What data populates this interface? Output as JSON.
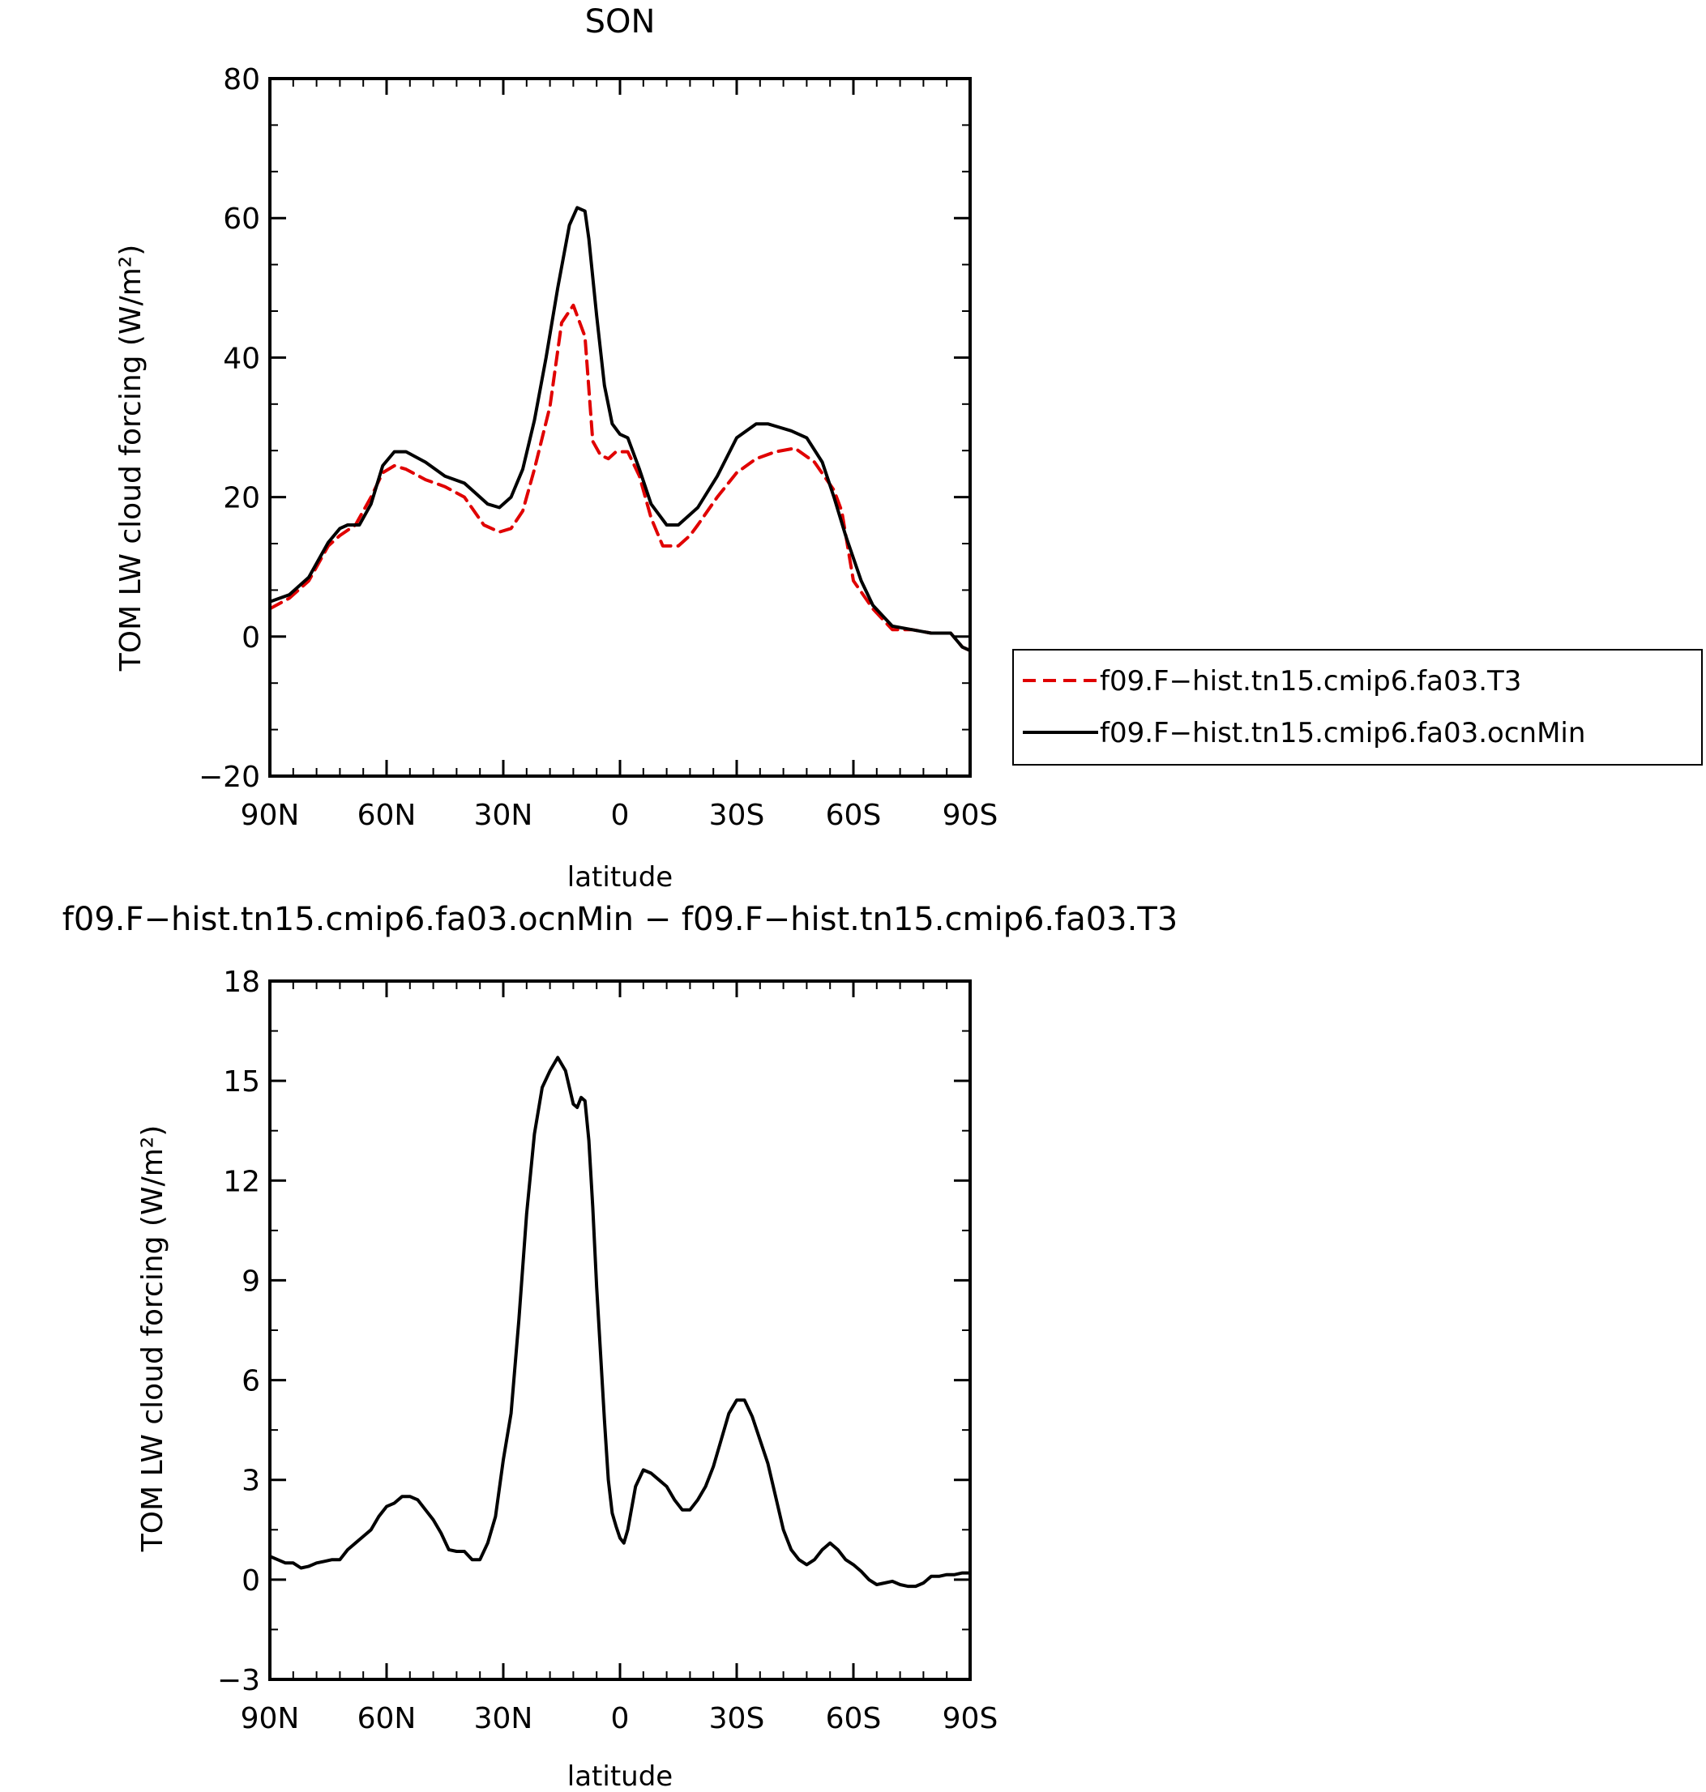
{
  "chart_data": [
    {
      "type": "line",
      "title": "SON",
      "xlabel": "latitude",
      "ylabel": "TOM LW cloud forcing (W/m²)",
      "xlim": [
        90,
        -90
      ],
      "ylim": [
        -20,
        80
      ],
      "xticks": [
        90,
        60,
        30,
        0,
        -30,
        -60,
        -90
      ],
      "xtick_labels": [
        "90N",
        "60N",
        "30N",
        "0",
        "30S",
        "60S",
        "90S"
      ],
      "yticks": [
        -20,
        0,
        20,
        40,
        60,
        80
      ],
      "ytick_labels": [
        "−20",
        "0",
        "20",
        "40",
        "60",
        "80"
      ],
      "legend_position": "right",
      "grid": false,
      "series": [
        {
          "name": "f09.F−hist.tn15.cmip6.fa03.T3",
          "color": "#e00000",
          "dash": "dashed",
          "x": [
            90,
            85,
            80,
            75,
            72,
            68,
            64,
            61,
            58,
            55,
            50,
            45,
            40,
            35,
            31,
            28,
            25,
            22,
            18,
            15,
            12,
            9,
            7,
            5,
            3,
            1,
            -2,
            -5,
            -8,
            -11,
            -15,
            -18,
            -20,
            -25,
            -30,
            -35,
            -40,
            -45,
            -50,
            -55,
            -57,
            -60,
            -65,
            -70,
            -75,
            -80,
            -85,
            -88,
            -90
          ],
          "y": [
            4,
            5.5,
            8,
            13,
            14.5,
            16,
            20,
            23.5,
            24.5,
            24,
            22.5,
            21.5,
            20,
            16,
            15,
            15.5,
            18,
            24,
            33,
            45,
            47.5,
            43,
            28,
            26,
            25.5,
            26.5,
            26.5,
            23,
            17,
            13,
            13,
            14.5,
            16,
            20,
            23.5,
            25.5,
            26.5,
            27,
            25,
            21,
            18,
            8,
            4,
            1,
            1,
            0.5,
            0.5,
            -1.5,
            -2
          ]
        },
        {
          "name": "f09.F−hist.tn15.cmip6.fa03.ocnMin",
          "color": "#000000",
          "dash": "solid",
          "x": [
            90,
            85,
            80,
            75,
            72,
            70,
            67,
            64,
            61,
            58,
            55,
            50,
            45,
            40,
            37,
            34,
            31,
            28,
            25,
            22,
            19,
            16,
            13,
            11,
            9,
            8,
            6,
            4,
            2,
            0,
            -2,
            -5,
            -8,
            -12,
            -15,
            -18,
            -20,
            -25,
            -30,
            -35,
            -38,
            -41,
            -44,
            -48,
            -52,
            -55,
            -58,
            -62,
            -65,
            -70,
            -75,
            -80,
            -85,
            -88,
            -90
          ],
          "y": [
            5,
            6,
            8.5,
            13.5,
            15.5,
            16,
            16,
            19,
            24.5,
            26.5,
            26.5,
            25,
            23,
            22,
            20.5,
            19,
            18.5,
            20,
            24,
            31,
            40,
            50,
            59,
            61.5,
            61,
            57,
            46,
            36,
            30.5,
            29,
            28.5,
            24,
            19,
            16,
            16,
            17.5,
            18.5,
            23,
            28.5,
            30.5,
            30.5,
            30,
            29.5,
            28.5,
            25,
            20,
            14.5,
            8,
            4.5,
            1.5,
            1,
            0.5,
            0.5,
            -1.5,
            -2
          ]
        }
      ]
    },
    {
      "type": "line",
      "title": "f09.F−hist.tn15.cmip6.fa03.ocnMin − f09.F−hist.tn15.cmip6.fa03.T3",
      "xlabel": "latitude",
      "ylabel": "TOM LW cloud forcing (W/m²)",
      "xlim": [
        90,
        -90
      ],
      "ylim": [
        -3,
        18
      ],
      "xticks": [
        90,
        60,
        30,
        0,
        -30,
        -60,
        -90
      ],
      "xtick_labels": [
        "90N",
        "60N",
        "30N",
        "0",
        "30S",
        "60S",
        "90S"
      ],
      "yticks": [
        -3,
        0,
        3,
        6,
        9,
        12,
        15,
        18
      ],
      "ytick_labels": [
        "−3",
        "0",
        "3",
        "6",
        "9",
        "12",
        "15",
        "18"
      ],
      "grid": false,
      "series": [
        {
          "color": "#000000",
          "dash": "solid",
          "x": [
            90,
            88,
            86,
            84,
            82,
            80,
            78,
            76,
            74,
            72,
            70,
            68,
            66,
            64,
            62,
            60,
            58,
            56,
            54,
            52,
            50,
            48,
            46,
            44,
            42,
            40,
            38,
            36,
            34,
            32,
            30,
            28,
            26,
            24,
            22,
            20,
            18,
            16,
            14,
            13,
            12,
            11,
            10,
            9,
            8,
            7,
            6,
            5,
            4,
            3,
            2,
            1,
            0,
            -1,
            -2,
            -4,
            -6,
            -8,
            -10,
            -12,
            -14,
            -16,
            -18,
            -20,
            -22,
            -24,
            -26,
            -28,
            -30,
            -32,
            -34,
            -36,
            -38,
            -40,
            -42,
            -44,
            -46,
            -48,
            -50,
            -52,
            -54,
            -56,
            -58,
            -60,
            -62,
            -64,
            -66,
            -68,
            -70,
            -72,
            -74,
            -76,
            -78,
            -80,
            -82,
            -84,
            -86,
            -88,
            -90
          ],
          "y": [
            0.7,
            0.6,
            0.5,
            0.5,
            0.35,
            0.4,
            0.5,
            0.55,
            0.6,
            0.6,
            0.9,
            1.1,
            1.3,
            1.5,
            1.9,
            2.2,
            2.3,
            2.5,
            2.5,
            2.4,
            2.1,
            1.8,
            1.4,
            0.9,
            0.85,
            0.85,
            0.6,
            0.6,
            1.1,
            1.9,
            3.6,
            5.0,
            7.8,
            11.0,
            13.4,
            14.8,
            15.3,
            15.7,
            15.3,
            14.8,
            14.3,
            14.2,
            14.5,
            14.4,
            13.2,
            11.2,
            8.8,
            6.8,
            4.8,
            3.0,
            2.0,
            1.6,
            1.25,
            1.1,
            1.5,
            2.8,
            3.3,
            3.2,
            3.0,
            2.8,
            2.4,
            2.1,
            2.1,
            2.4,
            2.8,
            3.4,
            4.2,
            5.0,
            5.4,
            5.4,
            4.9,
            4.2,
            3.5,
            2.5,
            1.5,
            0.9,
            0.6,
            0.45,
            0.6,
            0.9,
            1.1,
            0.9,
            0.6,
            0.45,
            0.25,
            0.0,
            -0.15,
            -0.1,
            -0.05,
            -0.15,
            -0.2,
            -0.2,
            -0.1,
            0.1,
            0.1,
            0.15,
            0.15,
            0.2,
            0.2
          ]
        }
      ]
    }
  ]
}
